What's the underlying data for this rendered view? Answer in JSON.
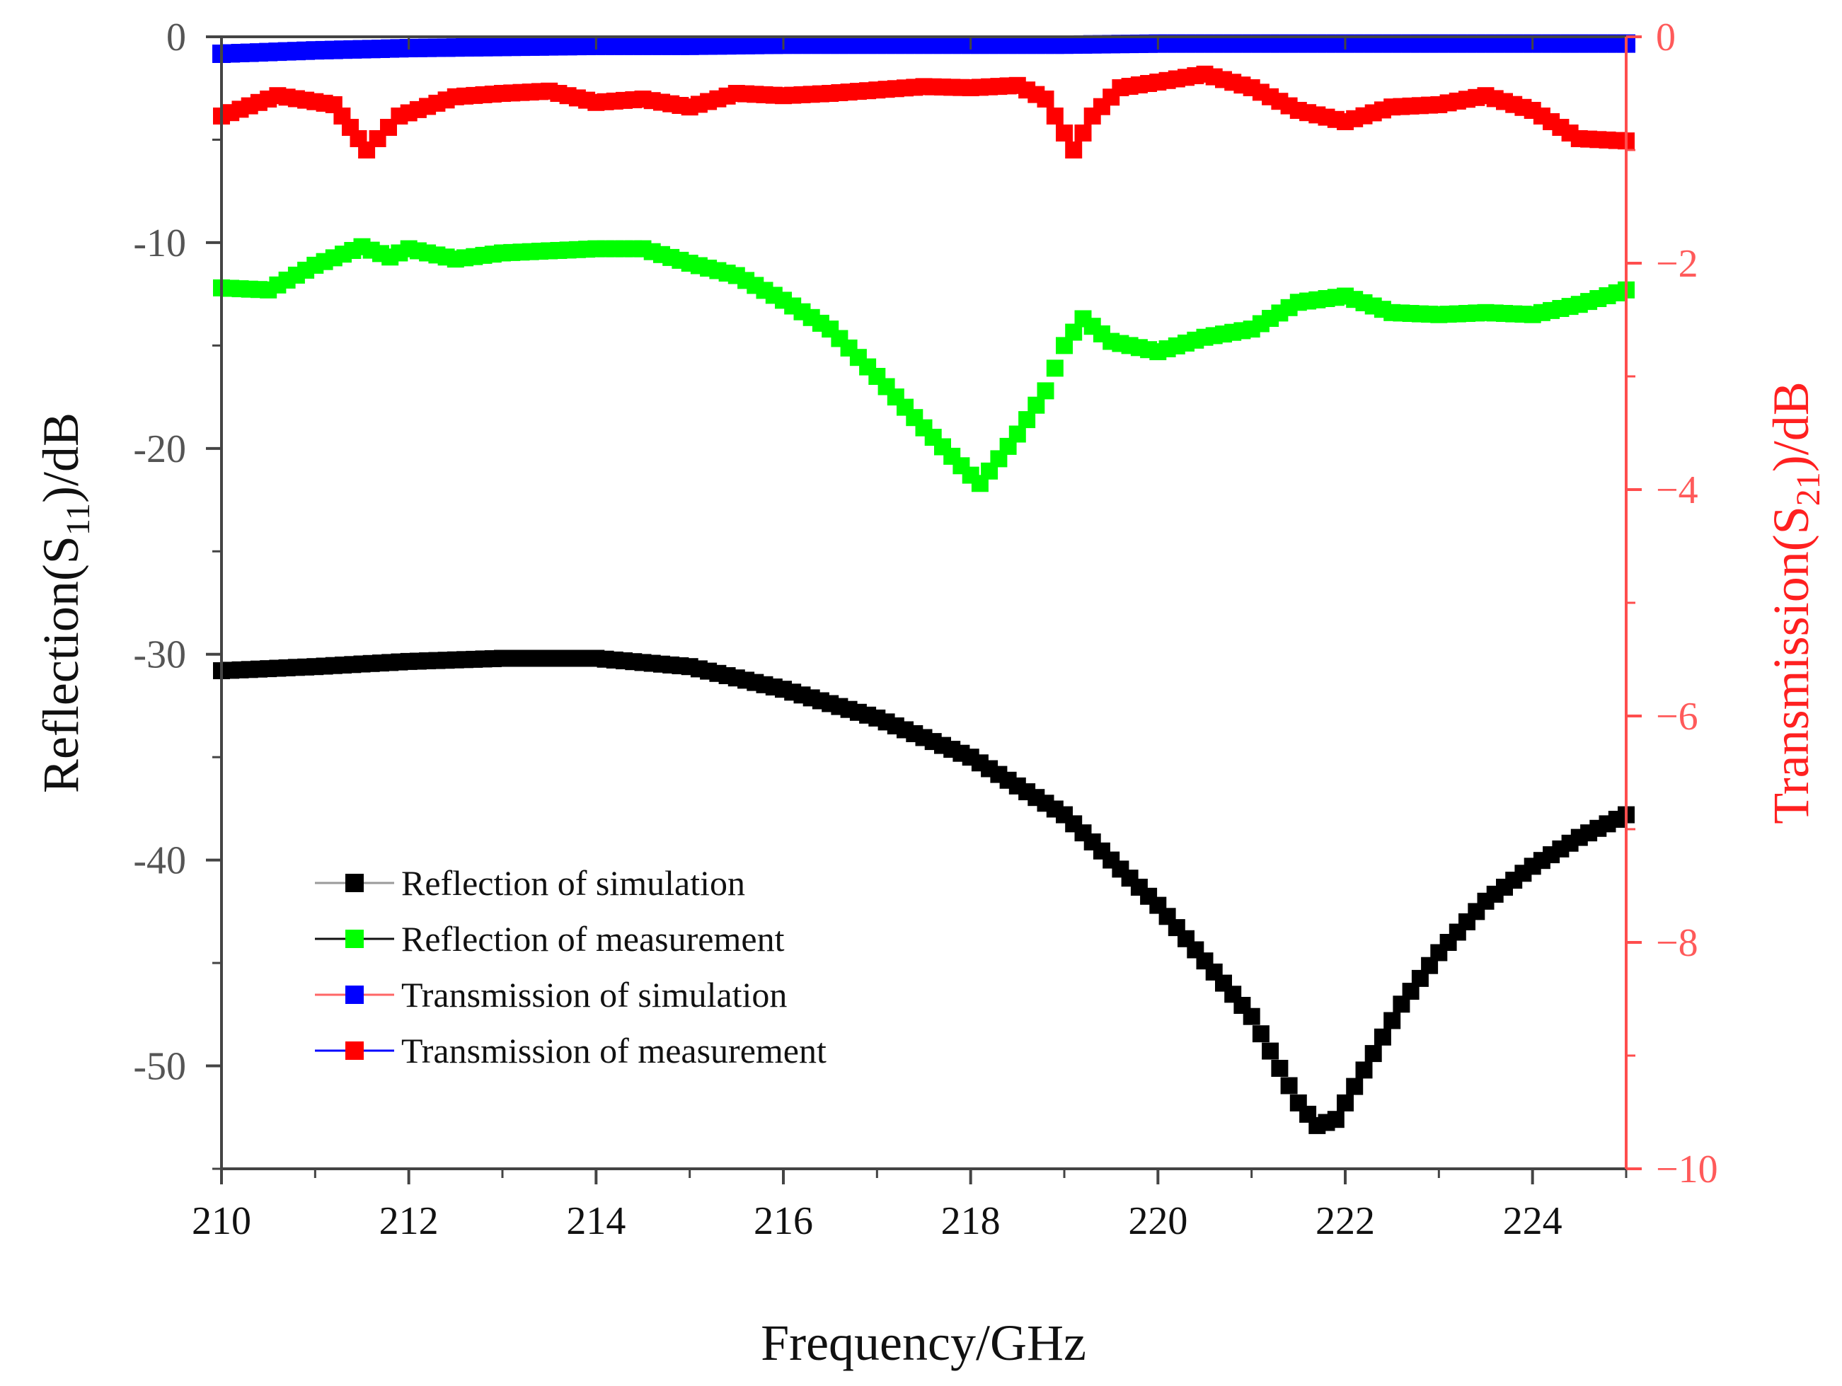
{
  "chart_data": {
    "type": "scatter",
    "xlabel": "Frequency/GHz",
    "ylabel_left": {
      "prefix": "Reflection(S",
      "sub": "11",
      "suffix": ")/dB"
    },
    "ylabel_right": {
      "prefix": "Transmission(S",
      "sub": "21",
      "suffix": ")/dB"
    },
    "xlim": [
      210,
      225
    ],
    "ylim_left": [
      -55,
      0
    ],
    "ylim_right": [
      -10,
      0
    ],
    "x_ticks": [
      "210",
      "212",
      "214",
      "216",
      "218",
      "220",
      "222",
      "224"
    ],
    "y_left_ticks": [
      "0",
      "-10",
      "-20",
      "-30",
      "-40",
      "-50"
    ],
    "y_right_ticks": [
      "0",
      "−2",
      "−4",
      "−6",
      "−8",
      "−10"
    ],
    "legend_position": "lower-left",
    "colors": {
      "left_axis": "#333333",
      "right_axis": "#ff3333"
    },
    "series": [
      {
        "name": "Reflection of simulation",
        "axis": "left",
        "color": "#000000",
        "legend_line_color": "#9a9a9a",
        "marker_color": "#000000",
        "points": [
          [
            210,
            -30.8
          ],
          [
            211,
            -30.6
          ],
          [
            212,
            -30.35
          ],
          [
            213,
            -30.2
          ],
          [
            214,
            -30.2
          ],
          [
            215,
            -30.6
          ],
          [
            216,
            -31.7
          ],
          [
            217,
            -33.1
          ],
          [
            218,
            -35.0
          ],
          [
            219,
            -37.8
          ],
          [
            220,
            -42.2
          ],
          [
            221,
            -47.6
          ],
          [
            221.5,
            -51.8
          ],
          [
            221.7,
            -52.9
          ],
          [
            221.9,
            -52.6
          ],
          [
            222.2,
            -50.2
          ],
          [
            222.6,
            -47.0
          ],
          [
            223,
            -44.5
          ],
          [
            223.5,
            -42.0
          ],
          [
            224,
            -40.3
          ],
          [
            224.5,
            -38.9
          ],
          [
            225,
            -37.8
          ]
        ]
      },
      {
        "name": "Reflection of measurement",
        "axis": "left",
        "color": "#00ff00",
        "legend_line_color": "#111111",
        "marker_color": "#00ff00",
        "points": [
          [
            210,
            -12.2
          ],
          [
            210.5,
            -12.3
          ],
          [
            211,
            -11.1
          ],
          [
            211.5,
            -10.2
          ],
          [
            211.8,
            -10.7
          ],
          [
            212,
            -10.3
          ],
          [
            212.5,
            -10.8
          ],
          [
            213,
            -10.5
          ],
          [
            213.5,
            -10.4
          ],
          [
            214,
            -10.3
          ],
          [
            214.5,
            -10.3
          ],
          [
            215,
            -11.0
          ],
          [
            215.5,
            -11.6
          ],
          [
            216,
            -12.8
          ],
          [
            216.5,
            -14.2
          ],
          [
            217,
            -16.5
          ],
          [
            217.5,
            -19.0
          ],
          [
            218,
            -21.3
          ],
          [
            218.1,
            -21.7
          ],
          [
            218.5,
            -19.3
          ],
          [
            218.8,
            -17.2
          ],
          [
            219,
            -15.0
          ],
          [
            219.2,
            -13.7
          ],
          [
            219.5,
            -14.8
          ],
          [
            220,
            -15.3
          ],
          [
            220.5,
            -14.6
          ],
          [
            221,
            -14.2
          ],
          [
            221.5,
            -12.9
          ],
          [
            222,
            -12.6
          ],
          [
            222.5,
            -13.4
          ],
          [
            223,
            -13.5
          ],
          [
            223.5,
            -13.4
          ],
          [
            224,
            -13.5
          ],
          [
            224.5,
            -13.0
          ],
          [
            225,
            -12.3
          ]
        ]
      },
      {
        "name": "Transmission of simulation",
        "axis": "right",
        "color": "#0000ff",
        "legend_line_color": "#ff6666",
        "marker_color": "#0000ff",
        "points": [
          [
            210,
            -0.15
          ],
          [
            211,
            -0.12
          ],
          [
            212,
            -0.1
          ],
          [
            213,
            -0.09
          ],
          [
            214,
            -0.08
          ],
          [
            215,
            -0.08
          ],
          [
            216,
            -0.07
          ],
          [
            217,
            -0.07
          ],
          [
            218,
            -0.07
          ],
          [
            219,
            -0.07
          ],
          [
            220,
            -0.06
          ],
          [
            221,
            -0.06
          ],
          [
            222,
            -0.06
          ],
          [
            223,
            -0.06
          ],
          [
            224,
            -0.06
          ],
          [
            225,
            -0.06
          ]
        ]
      },
      {
        "name": "Transmission of measurement",
        "axis": "right",
        "color": "#ff0000",
        "legend_line_color": "#0000ff",
        "marker_color": "#ff0000",
        "points": [
          [
            210,
            -0.7
          ],
          [
            210.6,
            -0.52
          ],
          [
            211.2,
            -0.6
          ],
          [
            211.55,
            -1.0
          ],
          [
            211.9,
            -0.7
          ],
          [
            212.5,
            -0.53
          ],
          [
            213,
            -0.5
          ],
          [
            213.5,
            -0.48
          ],
          [
            214,
            -0.58
          ],
          [
            214.5,
            -0.55
          ],
          [
            215,
            -0.62
          ],
          [
            215.5,
            -0.5
          ],
          [
            216,
            -0.52
          ],
          [
            216.5,
            -0.5
          ],
          [
            217,
            -0.47
          ],
          [
            217.5,
            -0.44
          ],
          [
            218,
            -0.45
          ],
          [
            218.5,
            -0.43
          ],
          [
            218.8,
            -0.55
          ],
          [
            219.1,
            -1.0
          ],
          [
            219.3,
            -0.7
          ],
          [
            219.6,
            -0.45
          ],
          [
            220,
            -0.4
          ],
          [
            220.5,
            -0.33
          ],
          [
            221,
            -0.45
          ],
          [
            221.5,
            -0.65
          ],
          [
            222,
            -0.75
          ],
          [
            222.5,
            -0.62
          ],
          [
            223,
            -0.6
          ],
          [
            223.5,
            -0.52
          ],
          [
            224,
            -0.65
          ],
          [
            224.5,
            -0.9
          ],
          [
            225,
            -0.92
          ]
        ]
      }
    ]
  }
}
